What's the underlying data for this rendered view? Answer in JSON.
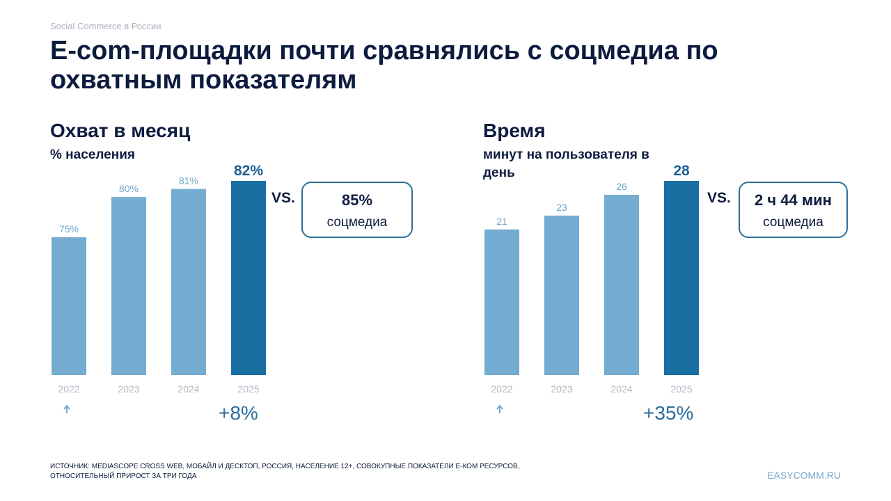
{
  "header": {
    "kicker": "Social Commerce в России",
    "title": "E-com-площадки почти сравнялись с соцмедиа по охватным показателям"
  },
  "colors": {
    "bar_light": "#74abd1",
    "bar_highlight": "#1a6fa2",
    "label_light": "#6da6cd",
    "label_highlight": "#1e5f94",
    "axis_label": "#b3b9c2"
  },
  "chart_data": [
    {
      "type": "bar",
      "title": "Охват в месяц",
      "subtitle": "% населения",
      "categories": [
        "2022",
        "2023",
        "2024",
        "2025"
      ],
      "values": [
        75,
        80,
        81,
        82
      ],
      "value_labels": [
        "75%",
        "80%",
        "81%",
        "82%"
      ],
      "highlight_index": 3,
      "ylim": [
        68,
        82
      ],
      "comparison": {
        "prefix": "VS.",
        "value": "85%",
        "label": "соцмедиа"
      },
      "growth": "+8%"
    },
    {
      "type": "bar",
      "title": "Время",
      "subtitle": "минут на пользователя в день",
      "categories": [
        "2022",
        "2023",
        "2024",
        "2025"
      ],
      "values": [
        21,
        23,
        26,
        28
      ],
      "value_labels": [
        "21",
        "23",
        "26",
        "28"
      ],
      "highlight_index": 3,
      "ylim": [
        0,
        28
      ],
      "comparison": {
        "prefix": "VS.",
        "value": "2 ч 44 мин",
        "label": "соцмедиа"
      },
      "growth": "+35%"
    }
  ],
  "footer": {
    "source_line1": "ИСТОЧНИК: MEDIASCOPE CROSS WEB, МОБАЙЛ И ДЕСКТОП, РОССИЯ, НАСЕЛЕНИЕ 12+, СОВОКУПНЫЕ ПОКАЗАТЕЛИ E-КОМ РЕСУРСОВ,",
    "source_line2": "ОТНОСИТЕЛЬНЫЙ ПРИРОСТ ЗА ТРИ ГОДА",
    "site": "EASYCOMM.RU"
  }
}
